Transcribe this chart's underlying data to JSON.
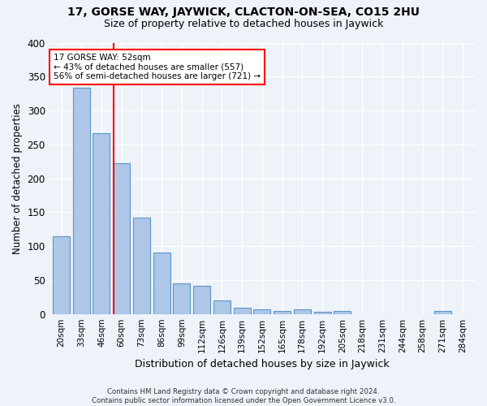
{
  "title1": "17, GORSE WAY, JAYWICK, CLACTON-ON-SEA, CO15 2HU",
  "title2": "Size of property relative to detached houses in Jaywick",
  "xlabel": "Distribution of detached houses by size in Jaywick",
  "ylabel": "Number of detached properties",
  "categories": [
    "20sqm",
    "33sqm",
    "46sqm",
    "60sqm",
    "73sqm",
    "86sqm",
    "99sqm",
    "112sqm",
    "126sqm",
    "139sqm",
    "152sqm",
    "165sqm",
    "178sqm",
    "192sqm",
    "205sqm",
    "218sqm",
    "231sqm",
    "244sqm",
    "258sqm",
    "271sqm",
    "284sqm"
  ],
  "values": [
    115,
    333,
    267,
    222,
    142,
    90,
    45,
    42,
    20,
    9,
    7,
    5,
    7,
    3,
    4,
    0,
    0,
    0,
    0,
    4,
    0
  ],
  "bar_color": "#aec6e8",
  "bar_edge_color": "#5a96c8",
  "annotation_text_line1": "17 GORSE WAY: 52sqm",
  "annotation_text_line2": "← 43% of detached houses are smaller (557)",
  "annotation_text_line3": "56% of semi-detached houses are larger (721) →",
  "annotation_box_color": "white",
  "annotation_box_edge_color": "red",
  "vline_color": "red",
  "vline_x_idx": 2.6,
  "ylim": [
    0,
    400
  ],
  "yticks": [
    0,
    50,
    100,
    150,
    200,
    250,
    300,
    350,
    400
  ],
  "footnote_line1": "Contains HM Land Registry data © Crown copyright and database right 2024.",
  "footnote_line2": "Contains public sector information licensed under the Open Government Licence v3.0.",
  "background_color": "#eef2f9",
  "grid_color": "white",
  "title1_fontsize": 10,
  "title2_fontsize": 9
}
